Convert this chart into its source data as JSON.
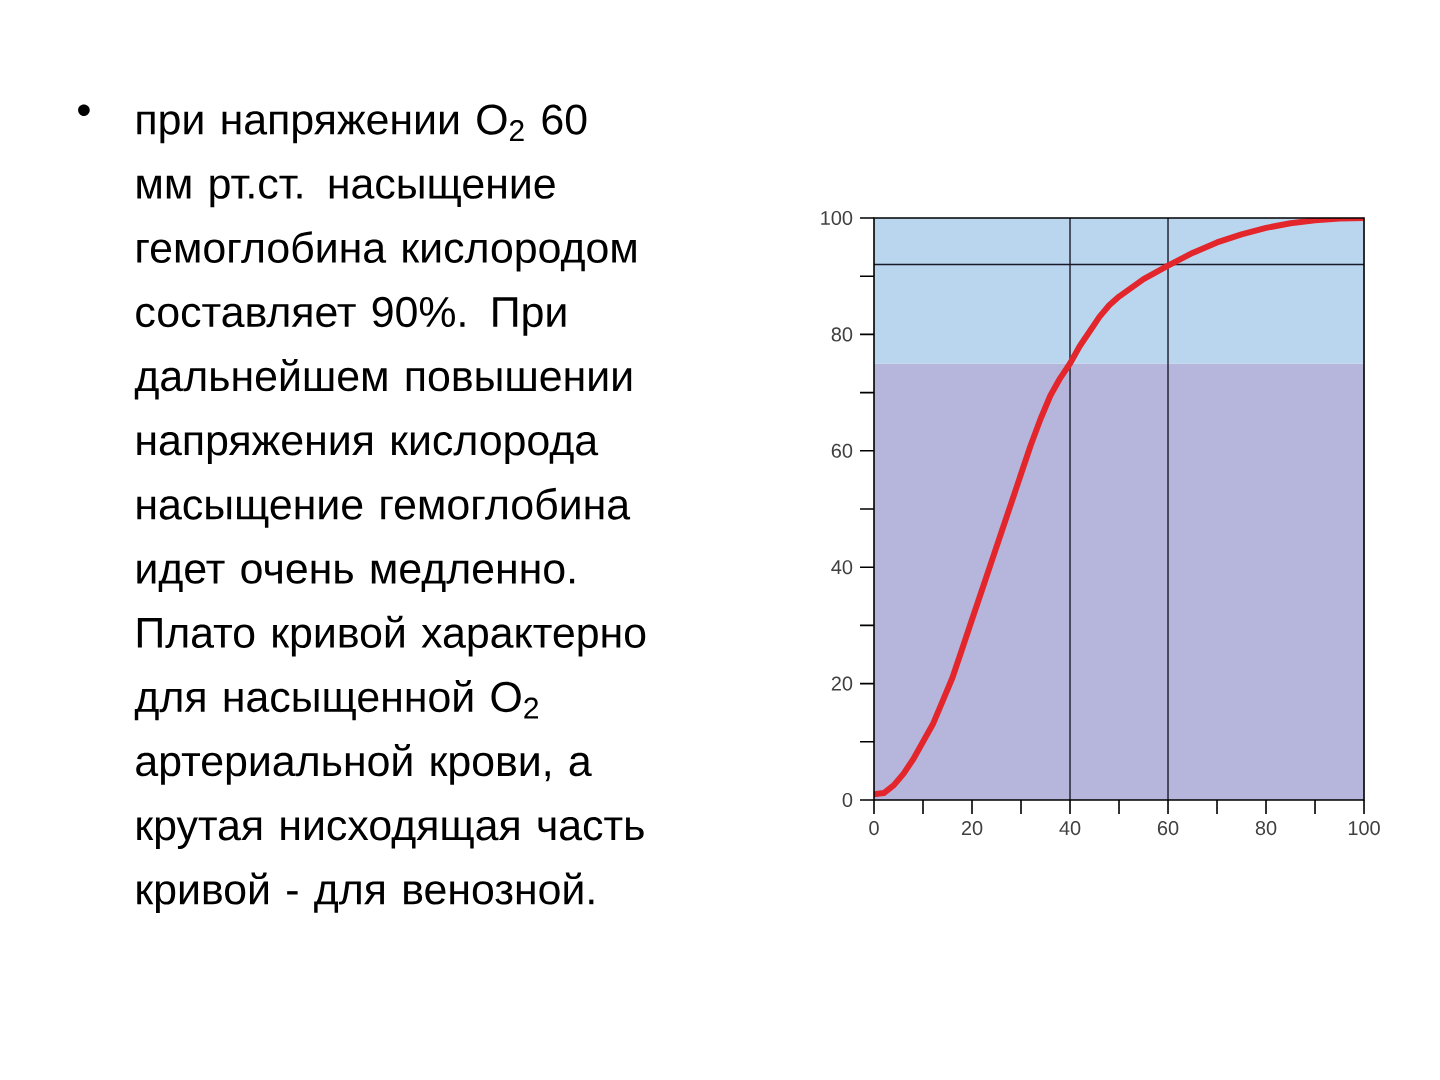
{
  "chart_data": {
    "type": "line",
    "annotations": [
      "•",
      "при напряжении O$_{2}$ 60 мм рт.ст. насыщение гемоглобина кислородом составляет 90%. При дальнейшем повышении напряжения кислорода насыщение гемоглобина идет очень медленно. Плато кривой характерно для насыщенной O$_{2}$ артериальной крови, а крутая нисходящая часть кривой - для венозной."
    ],
    "x": [
      0,
      2,
      4,
      6,
      8,
      10,
      12,
      14,
      16,
      18,
      20,
      22,
      24,
      26,
      28,
      30,
      32,
      34,
      36,
      38,
      40,
      42,
      44,
      46,
      48,
      50,
      55,
      60,
      65,
      70,
      75,
      80,
      85,
      90,
      95,
      100
    ],
    "series": [
      {
        "color": "#e3262b",
        "values": [
          1,
          1.2,
          2.5,
          4.5,
          7,
          10,
          13,
          17,
          21,
          26,
          31,
          36,
          41,
          46,
          51,
          56,
          61,
          65.5,
          69.5,
          72.5,
          75,
          78,
          80.5,
          83,
          85,
          86.5,
          89.5,
          91.8,
          94,
          95.8,
          97.2,
          98.3,
          99.1,
          99.6,
          99.9,
          100
        ]
      }
    ],
    "xlim": [
      0,
      100
    ],
    "ylim": [
      0,
      100
    ],
    "xticks": [
      0,
      {
        "value": 10,
        "label": null
      },
      20,
      {
        "value": 30,
        "label": null
      },
      40,
      {
        "value": 50,
        "label": null
      },
      60,
      {
        "value": 70,
        "label": null
      },
      80,
      {
        "value": 90,
        "label": null
      },
      100
    ],
    "yticks": [
      0,
      {
        "value": 10,
        "label": null
      },
      20,
      {
        "value": 30,
        "label": null
      },
      40,
      {
        "value": 50,
        "label": null
      },
      60,
      {
        "value": 70,
        "label": null
      },
      80,
      {
        "value": 90,
        "label": null
      },
      100
    ],
    "bands": [
      {
        "axis": "y",
        "from": 0,
        "to": 75,
        "color": "#b6b5db"
      },
      {
        "axis": "y",
        "from": 75,
        "to": 100,
        "color": "#bad6ee"
      }
    ],
    "ref_lines": [
      {
        "axis": "x",
        "value": 40,
        "color": "#1a1a2a"
      },
      {
        "axis": "x",
        "value": 60,
        "color": "#1a1a2a"
      },
      {
        "axis": "y",
        "value": 92,
        "color": "#1a1a2a"
      }
    ],
    "grid": false,
    "marker": "none",
    "line_style": "solid"
  }
}
